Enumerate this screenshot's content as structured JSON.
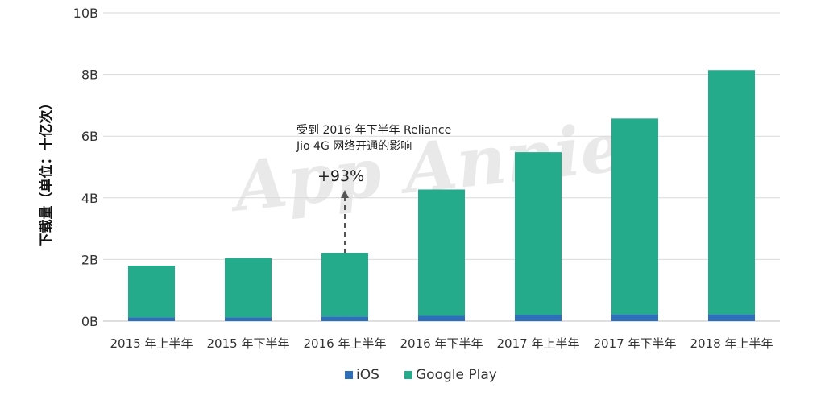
{
  "chart_data": {
    "type": "bar",
    "stacked": true,
    "ylabel": "下载量（单位：十亿次）",
    "ylim": [
      0,
      10
    ],
    "yticks": [
      0,
      2,
      4,
      6,
      8,
      10
    ],
    "ytick_labels": [
      "0B",
      "2B",
      "4B",
      "6B",
      "8B",
      "10B"
    ],
    "grid": true,
    "legend_position": "bottom",
    "categories": [
      "2015 年上半年",
      "2015 年下半年",
      "2016 年上半年",
      "2016 年下半年",
      "2017 年上半年",
      "2017 年下半年",
      "2018 年上半年"
    ],
    "series": [
      {
        "name": "iOS",
        "color": "#2e6fbb",
        "values": [
          0.12,
          0.12,
          0.15,
          0.17,
          0.2,
          0.22,
          0.22
        ]
      },
      {
        "name": "Google Play",
        "color": "#23ab8c",
        "values": [
          1.68,
          1.93,
          2.07,
          4.1,
          5.28,
          6.35,
          7.92
        ]
      }
    ],
    "annotation": {
      "text_line1": "受到 2016 年下半年 Reliance",
      "text_line2": "Jio 4G 网络开通的影响",
      "value_text": "+93%",
      "category_index": 2
    }
  },
  "watermark": "App Annie"
}
